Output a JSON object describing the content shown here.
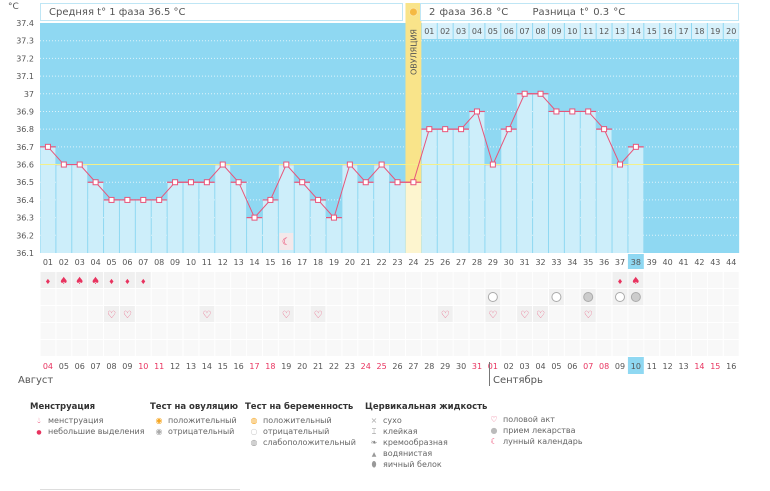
{
  "header": {
    "phase1_label": "Средняя t° 1 фаза 36.5 °C",
    "phase2_label": "2 фаза 36.8 °C",
    "diff_label": "Разница t° 0.3 °C",
    "ovulation_label": "ОВУЛЯЦИЯ"
  },
  "colors": {
    "bg": "#8fd8f2",
    "bar": "#cdeefa",
    "line": "#e8557a",
    "ovulation": "#f9e48a",
    "coverline": "#f3f08a",
    "highlight": "#8fd8f2",
    "weekend": "#e8335f"
  },
  "chart_data": {
    "type": "line",
    "yunit": "°C",
    "ylim": [
      36.1,
      37.4
    ],
    "yticks": [
      "37.4",
      "37.3",
      "37.2",
      "37.1",
      "37",
      "36.9",
      "36.8",
      "36.7",
      "36.6",
      "36.5",
      "36.4",
      "36.3",
      "36.2",
      "36.1"
    ],
    "coverline": 36.6,
    "ovulation_day": 24,
    "current_day": 38,
    "cycle_days": [
      "01",
      "02",
      "03",
      "04",
      "05",
      "06",
      "07",
      "08",
      "09",
      "10",
      "11",
      "12",
      "13",
      "14",
      "15",
      "16",
      "17",
      "18",
      "19",
      "20",
      "21",
      "22",
      "23",
      "24",
      "25",
      "26",
      "27",
      "28",
      "29",
      "30",
      "31",
      "32",
      "33",
      "34",
      "35",
      "36",
      "37",
      "38",
      "39",
      "40",
      "41",
      "42",
      "43",
      "44"
    ],
    "phase2_days": [
      "01",
      "02",
      "03",
      "04",
      "05",
      "06",
      "07",
      "08",
      "09",
      "10",
      "11",
      "12",
      "13",
      "14",
      "15",
      "16",
      "17",
      "18",
      "19",
      "20"
    ],
    "temperatures": [
      36.7,
      36.6,
      36.6,
      36.5,
      36.4,
      36.4,
      36.4,
      36.4,
      36.5,
      36.5,
      36.5,
      36.6,
      36.5,
      36.3,
      36.4,
      36.6,
      36.5,
      36.4,
      36.3,
      36.6,
      36.5,
      36.6,
      36.5,
      36.5,
      36.8,
      36.8,
      36.8,
      36.9,
      36.6,
      36.8,
      37.0,
      37.0,
      36.9,
      36.9,
      36.9,
      36.8,
      36.6,
      36.7
    ],
    "dates": [
      "04",
      "05",
      "06",
      "07",
      "08",
      "09",
      "10",
      "11",
      "12",
      "13",
      "14",
      "15",
      "16",
      "17",
      "18",
      "19",
      "20",
      "21",
      "22",
      "23",
      "24",
      "25",
      "26",
      "27",
      "28",
      "29",
      "30",
      "31",
      "01",
      "02",
      "03",
      "04",
      "05",
      "06",
      "07",
      "08",
      "09",
      "10",
      "11",
      "12",
      "13",
      "14",
      "15",
      "16"
    ],
    "weekend_dates_idx": [
      0,
      6,
      7,
      13,
      14,
      20,
      21,
      27,
      28,
      34,
      35,
      41,
      42
    ],
    "months": [
      "Август",
      "Сентябрь"
    ],
    "menstruation": {
      "1": "light",
      "2": "heavy",
      "3": "heavy",
      "4": "heavy",
      "5": "light",
      "6": "light",
      "7": "light",
      "37": "light",
      "38": "heavy"
    },
    "pregnancy_tests": {
      "29": "negative",
      "33": "negative",
      "35": "weak",
      "37": "negative",
      "38": "weak"
    },
    "intercourse": [
      5,
      6,
      11,
      16,
      18,
      26,
      29,
      31,
      32,
      35
    ],
    "lunar_calendar": [
      16
    ]
  },
  "legend": {
    "menstruation": {
      "title": "Менструация",
      "items": [
        "менструация",
        "небольшие выделения"
      ]
    },
    "ovulation_test": {
      "title": "Тест на овуляцию",
      "items": [
        "положительный",
        "отрицательный"
      ]
    },
    "pregnancy_test": {
      "title": "Тест на беременность",
      "items": [
        "положительный",
        "отрицательный",
        "слабоположительный"
      ]
    },
    "cervical": {
      "title": "Цервикальная жидкость",
      "items": [
        "сухо",
        "клейкая",
        "кремообразная",
        "водянистая",
        "яичный белок"
      ]
    },
    "other": {
      "items": [
        "половой акт",
        "прием лекарства",
        "лунный календарь"
      ]
    }
  }
}
